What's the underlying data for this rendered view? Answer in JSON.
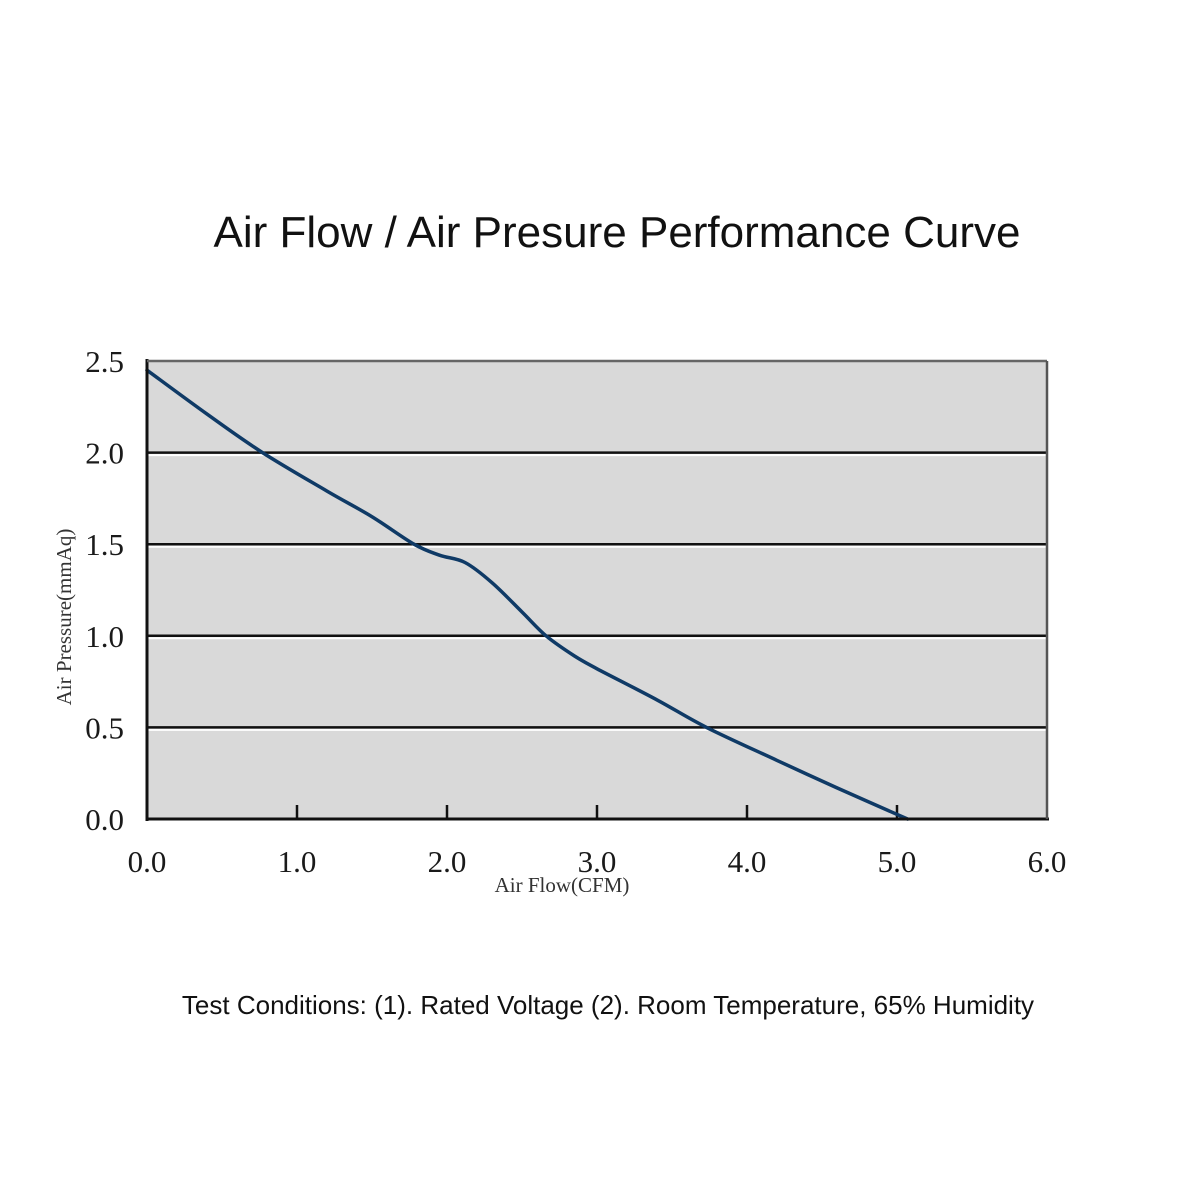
{
  "chart_data": {
    "type": "line",
    "title": "Air Flow / Air Presure Performance Curve",
    "xlabel": "Air Flow(CFM)",
    "ylabel": "Air Pressure(mmAq)",
    "xlim": [
      0,
      6
    ],
    "ylim": [
      0,
      2.5
    ],
    "x_ticks": [
      "0.0",
      "1.0",
      "2.0",
      "3.0",
      "4.0",
      "5.0",
      "6.0"
    ],
    "y_ticks": [
      "0.0",
      "0.5",
      "1.0",
      "1.5",
      "2.0",
      "2.5"
    ],
    "grid": "horizontal",
    "series": [
      {
        "name": "Performance Curve",
        "x": [
          0.0,
          0.4,
          0.77,
          1.2,
          1.5,
          1.78,
          1.95,
          2.12,
          2.3,
          2.5,
          2.66,
          2.85,
          3.0,
          3.4,
          3.73,
          4.2,
          4.6,
          5.07
        ],
        "y": [
          2.45,
          2.21,
          2.0,
          1.79,
          1.65,
          1.5,
          1.44,
          1.4,
          1.29,
          1.13,
          1.0,
          0.89,
          0.82,
          0.65,
          0.5,
          0.32,
          0.17,
          0.0
        ]
      }
    ],
    "colors": {
      "line": "#0f3a66",
      "plot_bg": "#d9d9d9",
      "grid": "#111111"
    },
    "footnote": "Test Conditions:  (1). Rated Voltage  (2). Room Temperature, 65% Humidity"
  }
}
